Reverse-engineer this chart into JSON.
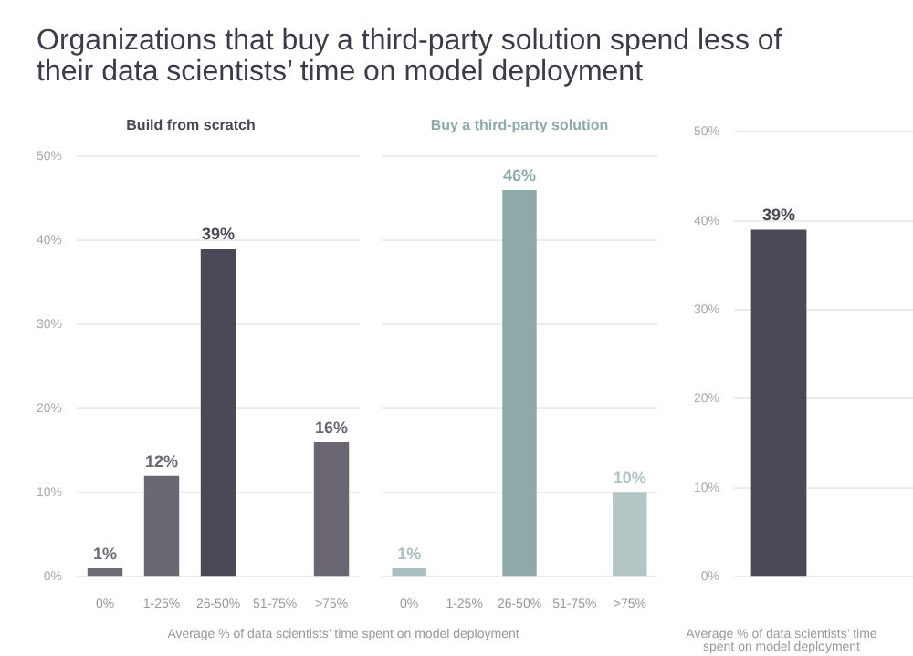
{
  "chart_data": [
    {
      "type": "other",
      "title": "Organizations that buy a third-party solution spend less of their data scientists’ time on model deployment"
    },
    {
      "type": "bar",
      "title": "Build from scratch",
      "xlabel": "Average % of data scientists’ time spent on model deployment",
      "categories": [
        "0%",
        "1-25%",
        "26-50%",
        "51-75%",
        ">75%"
      ],
      "values": [
        1,
        12,
        39,
        null,
        16
      ],
      "value_labels": [
        "1%",
        "12%",
        "39%",
        null,
        "16%"
      ],
      "colors": [
        "#6f6b76",
        "#6b6772",
        "#4b4858",
        "#5a5663",
        "#6a6671"
      ],
      "ylim": [
        0,
        50
      ],
      "yticks": [
        {
          "value": 0,
          "label": "0%"
        },
        {
          "value": 10,
          "label": "10%"
        },
        {
          "value": 20,
          "label": "20%"
        },
        {
          "value": 30,
          "label": "30%"
        },
        {
          "value": 40,
          "label": "40%"
        },
        {
          "value": 50,
          "label": "50%"
        }
      ],
      "grid": "y",
      "legend": false
    },
    {
      "type": "bar",
      "title": "Buy a third-party solution",
      "categories": [
        "0%",
        "1-25%",
        "26-50%",
        "51-75%",
        ">75%"
      ],
      "values": [
        1,
        null,
        46,
        null,
        10
      ],
      "value_labels": [
        "1%",
        null,
        "46%",
        null,
        "10%"
      ],
      "colors": [
        "#a9bfc0",
        "#99b3b5",
        "#8fa9ab",
        "#9cb5b6",
        "#b2c6c6"
      ],
      "ylim": [
        0,
        50
      ],
      "yticks": [
        {
          "value": 0,
          "label": null
        },
        {
          "value": 10,
          "label": null
        },
        {
          "value": 20,
          "label": null
        },
        {
          "value": 30,
          "label": null
        },
        {
          "value": 40,
          "label": null
        },
        {
          "value": 50,
          "label": null
        }
      ],
      "grid": "y",
      "legend": false,
      "tick_labels": "x"
    },
    {
      "type": "bar",
      "xlabel": "Average % of data scientists’ time spent on model deployment",
      "categories": [
        null,
        null
      ],
      "values": [
        39,
        null
      ],
      "value_labels": [
        "39%",
        null
      ],
      "colors": [
        "#4b4858",
        "#93aeb0"
      ],
      "ylim": [
        0,
        50
      ],
      "yticks": [
        {
          "value": 0,
          "label": "0%"
        },
        {
          "value": 10,
          "label": "10%"
        },
        {
          "value": 20,
          "label": "20%"
        },
        {
          "value": 30,
          "label": "30%"
        },
        {
          "value": 40,
          "label": "40%"
        },
        {
          "value": 50,
          "label": "50%"
        }
      ],
      "grid": "y",
      "legend": false
    }
  ]
}
